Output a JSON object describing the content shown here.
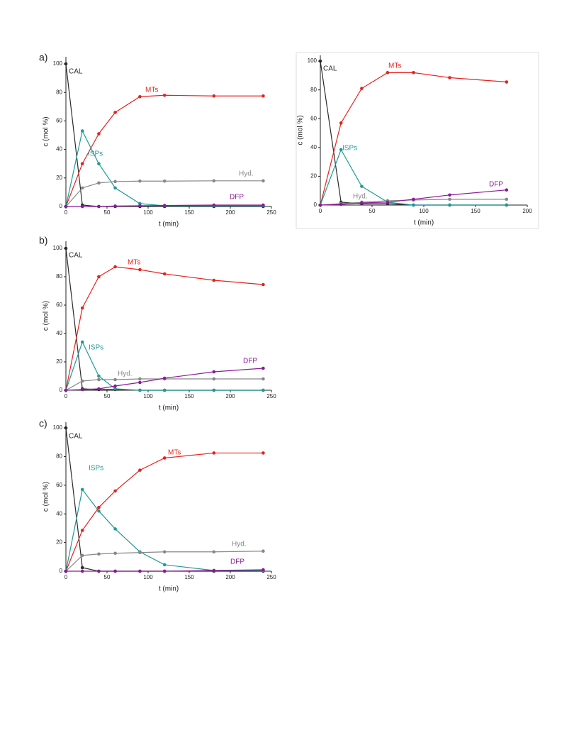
{
  "chart_data": [
    {
      "type": "line",
      "panel_label": "a)",
      "x_label": "t (min)",
      "y_label": "c (mol %)",
      "x": [
        0,
        20,
        40,
        60,
        90,
        120,
        180,
        240
      ],
      "xlim": [
        0,
        250
      ],
      "xticks": [
        0,
        50,
        100,
        150,
        200,
        250
      ],
      "ylim": [
        0,
        105
      ],
      "yticks": [
        0,
        20,
        40,
        60,
        80,
        100
      ],
      "series": [
        {
          "name": "CAL",
          "color": "#2a2a2a",
          "values": [
            100,
            1,
            0,
            0,
            0,
            0,
            0,
            0
          ]
        },
        {
          "name": "MTs",
          "color": "#e8211c",
          "values": [
            0,
            30,
            51,
            66,
            77,
            78,
            77.5,
            77.5
          ]
        },
        {
          "name": "ISPs",
          "color": "#1e9a9a",
          "values": [
            0,
            53,
            30,
            13,
            2,
            0.5,
            0.5,
            0.5
          ]
        },
        {
          "name": "Hyd.",
          "color": "#888888",
          "values": [
            0,
            13,
            16.5,
            17.5,
            17.8,
            17.8,
            18,
            18
          ]
        },
        {
          "name": "DFP",
          "color": "#8b1a9a",
          "values": [
            0,
            0,
            0,
            0.3,
            0.5,
            0.7,
            1,
            1
          ]
        }
      ]
    },
    {
      "type": "line",
      "x_label": "t (min)",
      "y_label": "c (mol %)",
      "x": [
        0,
        20,
        40,
        65,
        90,
        125,
        180
      ],
      "xlim": [
        0,
        200
      ],
      "xticks": [
        0,
        50,
        100,
        150,
        200
      ],
      "ylim": [
        0,
        104
      ],
      "yticks": [
        0,
        20,
        40,
        60,
        80,
        100
      ],
      "series": [
        {
          "name": "CAL",
          "color": "#2a2a2a",
          "values": [
            100,
            2,
            1,
            1,
            0,
            0,
            0
          ]
        },
        {
          "name": "MTs",
          "color": "#e8211c",
          "values": [
            0,
            57,
            81,
            92,
            92,
            88.5,
            85.5
          ]
        },
        {
          "name": "ISPs",
          "color": "#1e9a9a",
          "values": [
            0,
            38.5,
            13,
            2,
            0,
            0,
            0
          ]
        },
        {
          "name": "Hyd.",
          "color": "#888888",
          "values": [
            0,
            1,
            2,
            3,
            3.5,
            4,
            4
          ]
        },
        {
          "name": "DFP",
          "color": "#8b1a9a",
          "values": [
            0,
            0.5,
            1.5,
            2,
            4,
            7,
            10.5
          ]
        }
      ]
    },
    {
      "type": "line",
      "panel_label": "b)",
      "x_label": "t (min)",
      "y_label": "c (mol %)",
      "x": [
        0,
        20,
        40,
        60,
        90,
        120,
        180,
        240
      ],
      "xlim": [
        0,
        250
      ],
      "xticks": [
        0,
        50,
        100,
        150,
        200,
        250
      ],
      "ylim": [
        0,
        105
      ],
      "yticks": [
        0,
        20,
        40,
        60,
        80,
        100
      ],
      "series": [
        {
          "name": "CAL",
          "color": "#2a2a2a",
          "values": [
            100,
            1,
            0.5,
            0.5,
            0,
            0,
            0,
            0
          ]
        },
        {
          "name": "MTs",
          "color": "#e8211c",
          "values": [
            0,
            58,
            80,
            87,
            85,
            82,
            77.5,
            74.5
          ]
        },
        {
          "name": "ISPs",
          "color": "#1e9a9a",
          "values": [
            0,
            34,
            10,
            1,
            0,
            0,
            0,
            0
          ]
        },
        {
          "name": "Hyd.",
          "color": "#888888",
          "values": [
            0,
            6.5,
            7.5,
            7.5,
            8,
            8,
            8,
            8
          ]
        },
        {
          "name": "DFP",
          "color": "#8b1a9a",
          "values": [
            0,
            0.5,
            1,
            3,
            5.5,
            8.5,
            13,
            15.5
          ]
        }
      ]
    },
    {
      "type": "line",
      "panel_label": "c)",
      "x_label": "t (min)",
      "y_label": "c (mol %)",
      "x": [
        0,
        20,
        40,
        60,
        90,
        120,
        180,
        240
      ],
      "xlim": [
        0,
        250
      ],
      "xticks": [
        0,
        50,
        100,
        150,
        200,
        250
      ],
      "ylim": [
        0,
        104
      ],
      "yticks": [
        0,
        20,
        40,
        60,
        80,
        100
      ],
      "series": [
        {
          "name": "CAL",
          "color": "#2a2a2a",
          "values": [
            100,
            2.5,
            0,
            0,
            0,
            0,
            0,
            0
          ]
        },
        {
          "name": "MTs",
          "color": "#e8211c",
          "values": [
            0,
            28.5,
            44.5,
            56,
            70.5,
            79,
            82.5,
            82.5
          ]
        },
        {
          "name": "ISPs",
          "color": "#1e9a9a",
          "values": [
            0,
            57,
            42,
            29.5,
            13.5,
            4.5,
            0.5,
            0.5
          ]
        },
        {
          "name": "Hyd.",
          "color": "#888888",
          "values": [
            0,
            11,
            12,
            12.5,
            13,
            13.5,
            13.5,
            14
          ]
        },
        {
          "name": "DFP",
          "color": "#8b1a9a",
          "values": [
            0,
            0,
            0,
            0,
            0,
            0,
            0.5,
            1
          ]
        }
      ]
    }
  ]
}
